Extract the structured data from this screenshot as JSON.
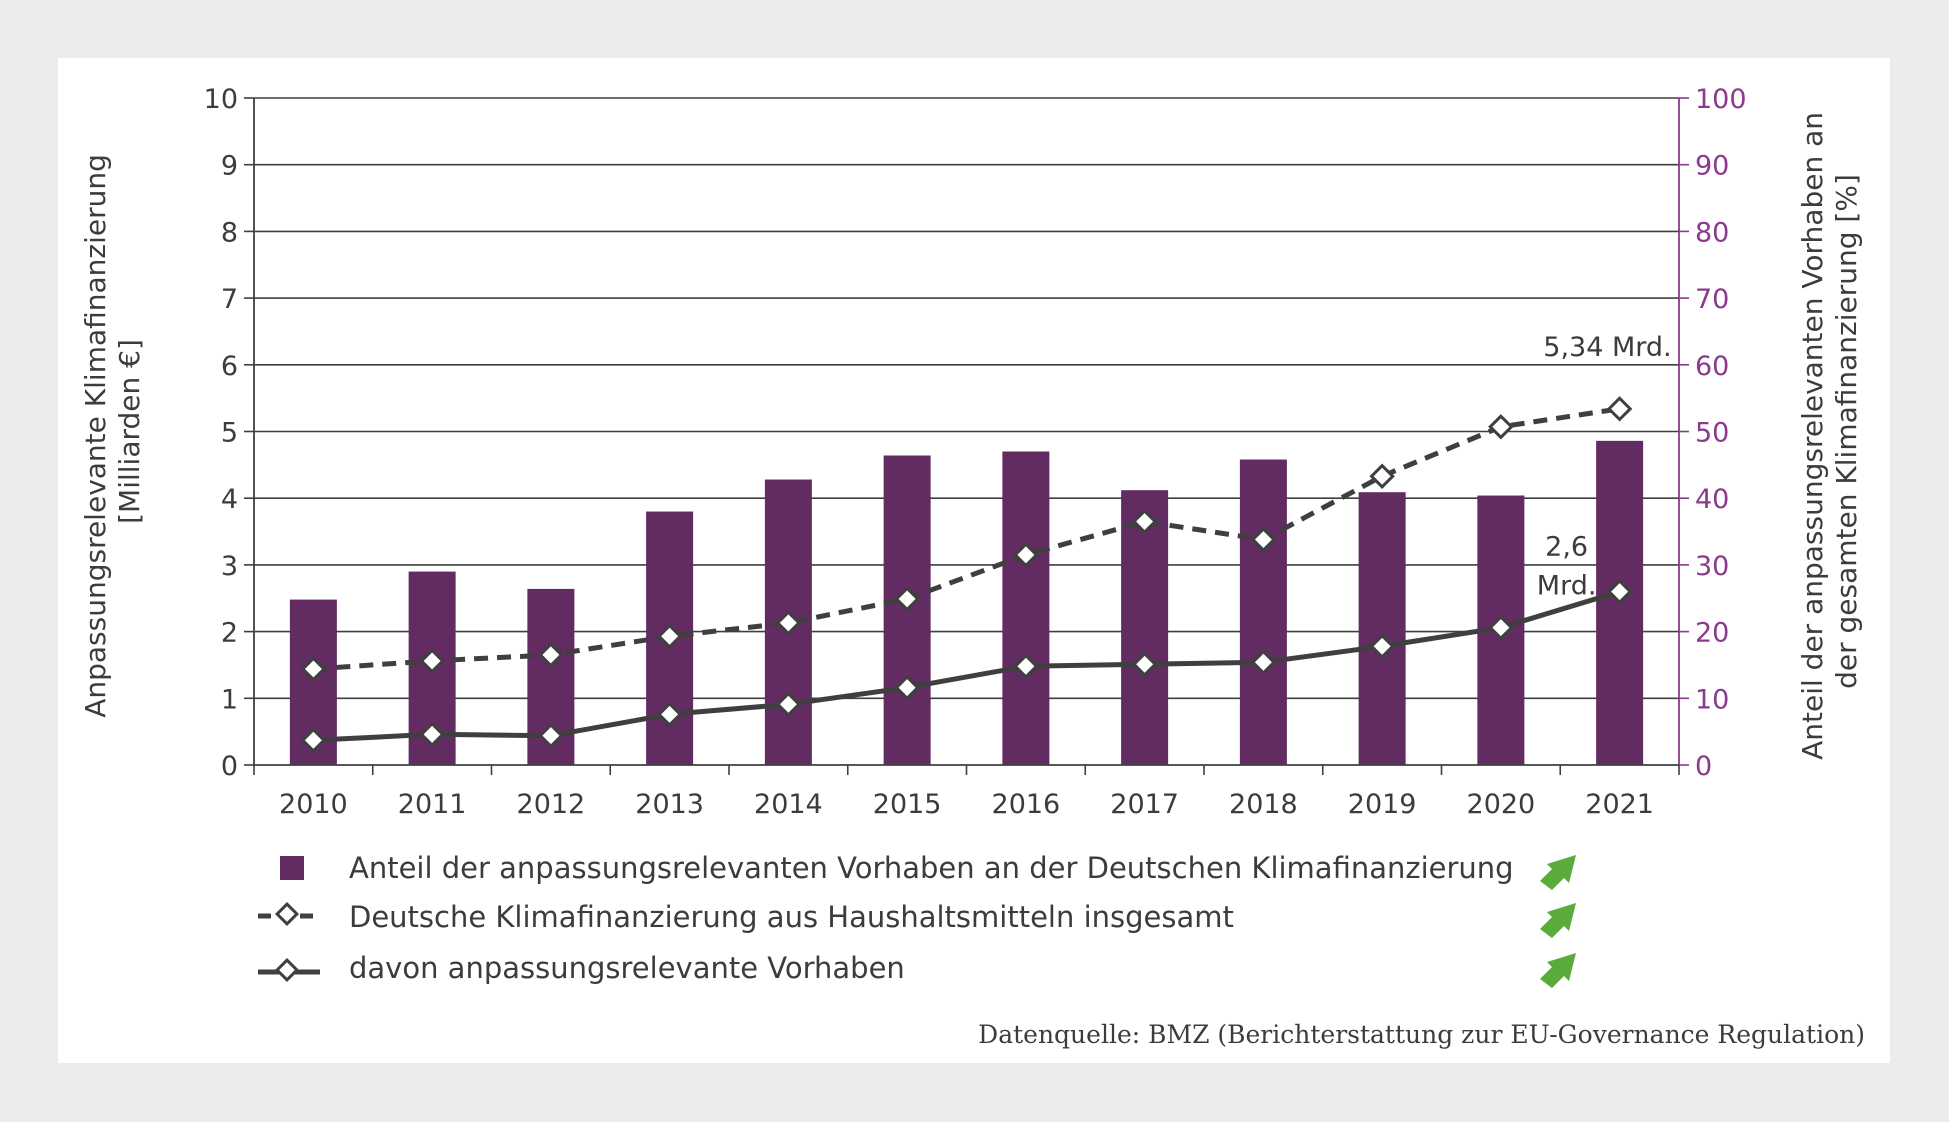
{
  "colors": {
    "bar": "#622c62",
    "line": "#3f3f3f",
    "right_axis": "#8b3a8e",
    "grid": "#3f3f3f",
    "trend_arrow": "#5aaa3c"
  },
  "icons": {
    "trend": "trend-up-arrow-icon"
  },
  "chart_data": {
    "type": "bar",
    "categories": [
      "2010",
      "2011",
      "2012",
      "2013",
      "2014",
      "2015",
      "2016",
      "2017",
      "2018",
      "2019",
      "2020",
      "2021"
    ],
    "series": [
      {
        "name": "Anteil der anpassungsrelevanten Vorhaben an der Deutschen Klimafinanzierung",
        "type": "bar",
        "axis": "right",
        "values": [
          24.8,
          29.0,
          26.4,
          38.0,
          42.8,
          46.4,
          47.0,
          41.2,
          45.8,
          40.9,
          40.4,
          48.6
        ]
      },
      {
        "name": "Deutsche Klimafinanzierung aus Haushaltsmitteln insgesamt",
        "type": "line",
        "style": "dashed",
        "axis": "left",
        "values": [
          1.44,
          1.56,
          1.65,
          1.93,
          2.13,
          2.49,
          3.15,
          3.65,
          3.38,
          4.33,
          5.07,
          5.34
        ]
      },
      {
        "name": "davon anpassungsrelevante Vorhaben",
        "type": "line",
        "style": "solid",
        "axis": "left",
        "values": [
          0.37,
          0.46,
          0.44,
          0.76,
          0.91,
          1.16,
          1.48,
          1.51,
          1.54,
          1.78,
          2.06,
          2.6
        ]
      }
    ],
    "ylabel_left": "Anpassungsrelevante Klimafinanzierung [Milliarden €]",
    "ylabel_left_lines": [
      "Anpassungsrelevante Klimafinanzierung",
      "[Milliarden €]"
    ],
    "ylabel_right": "Anteil der anpassungsrelevanten Vorhaben an der gesamten Klimafinanzierung [%]",
    "ylabel_right_lines": [
      "Anteil der anpassungsrelevanten Vorhaben an",
      "der gesamten Klimafinanzierung [%]"
    ],
    "ylim_left": [
      0,
      10
    ],
    "ylim_right": [
      0,
      100
    ],
    "yticks_left": [
      "0",
      "1",
      "2",
      "3",
      "4",
      "5",
      "6",
      "7",
      "8",
      "9",
      "10"
    ],
    "yticks_right": [
      "0",
      "10",
      "20",
      "30",
      "40",
      "50",
      "60",
      "70",
      "80",
      "90",
      "100"
    ],
    "grid": true,
    "legend_position": "bottom",
    "annotations": [
      {
        "text": "5,34 Mrd.",
        "series": 1,
        "index": 11
      },
      {
        "text": "2,6",
        "series": 2,
        "index": 11
      },
      {
        "text": "Mrd.",
        "series": 2,
        "index": 11
      }
    ],
    "source": "Datenquelle: BMZ (Berichterstattung zur EU-Governance Regulation)"
  }
}
